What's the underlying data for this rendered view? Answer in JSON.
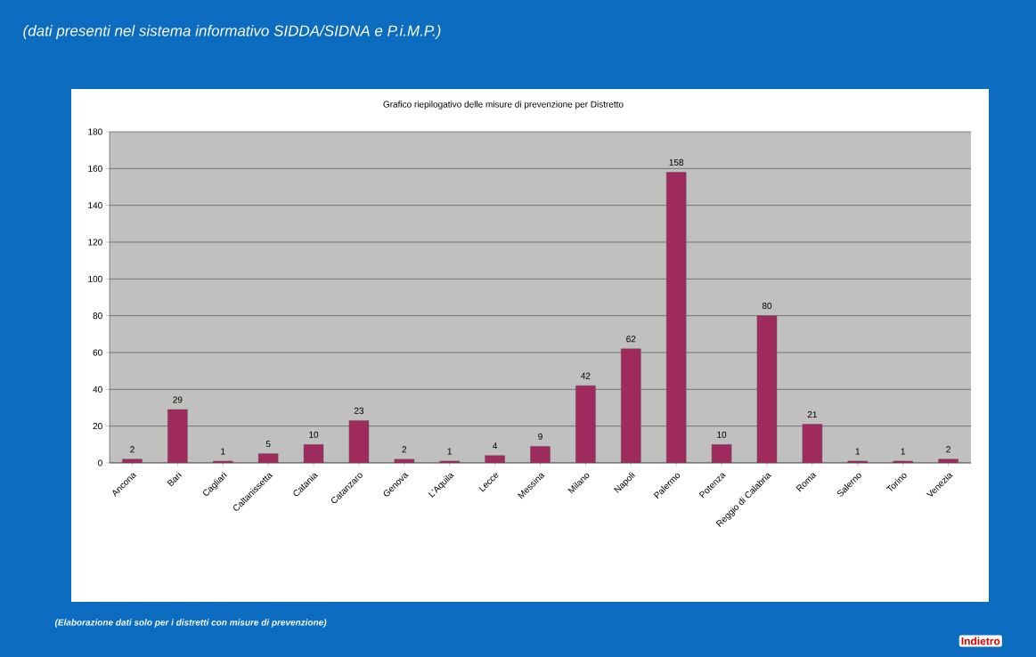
{
  "chart_data": {
    "type": "bar",
    "title": "Grafico riepilogativo delle misure di prevenzione per Distretto",
    "subtitle": "(dati presenti nel sistema informativo SIDDA/SIDNA e P.i.M.P.)",
    "annotations": [
      "(Elaborazione dati solo per i distretti con misure di prevenzione)",
      "Indietro"
    ],
    "categories": [
      "Ancona",
      "Bari",
      "Cagliari",
      "Caltanissetta",
      "Catania",
      "Catanzaro",
      "Genova",
      "L'Aquila",
      "Lecce",
      "Messina",
      "Milano",
      "Napoli",
      "Palermo",
      "Potenza",
      "Reggio di Calabria",
      "Roma",
      "Salerno",
      "Torino",
      "Venezia"
    ],
    "values": [
      2,
      29,
      1,
      5,
      10,
      23,
      2,
      1,
      4,
      9,
      42,
      62,
      158,
      10,
      80,
      21,
      1,
      1,
      2
    ],
    "color": "#9e2a5e",
    "ylim": [
      0,
      180
    ],
    "yticks": [
      0,
      20,
      40,
      60,
      80,
      100,
      120,
      140,
      160,
      180
    ],
    "grid": "y",
    "data_labels": true
  }
}
